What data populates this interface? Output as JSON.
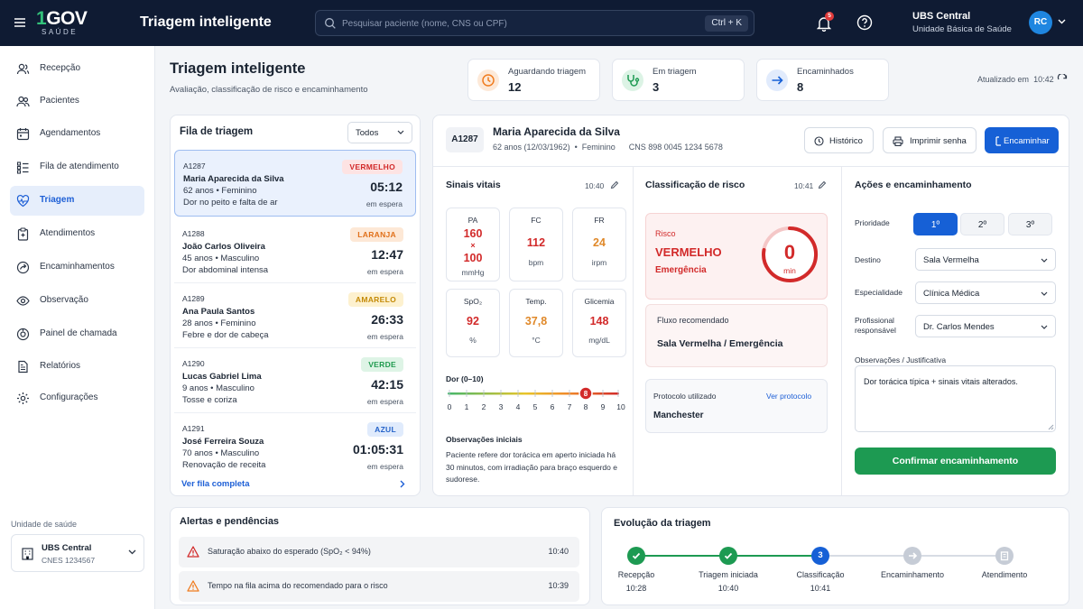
{
  "topbar": {
    "logo_main": "GOV",
    "logo_one": "1",
    "logo_sub": "SAÚDE",
    "title": "Triagem inteligente",
    "search_placeholder": "Pesquisar paciente (nome, CNS ou CPF)",
    "search_shortcut": "Ctrl + K",
    "notifications_count": "5",
    "unit_name": "UBS Central",
    "unit_type": "Unidade Básica de Saúde",
    "user_initials": "RC"
  },
  "sidebar": {
    "items": [
      {
        "label": "Recepção",
        "icon": "users-icon"
      },
      {
        "label": "Pacientes",
        "icon": "patients-icon"
      },
      {
        "label": "Agendamentos",
        "icon": "calendar-icon"
      },
      {
        "label": "Fila de atendimento",
        "icon": "queue-icon"
      },
      {
        "label": "Triagem",
        "icon": "heart-pulse-icon",
        "active": true
      },
      {
        "label": "Atendimentos",
        "icon": "clipboard-icon"
      },
      {
        "label": "Encaminhamentos",
        "icon": "referral-icon"
      },
      {
        "label": "Observação",
        "icon": "eye-icon"
      },
      {
        "label": "Painel de chamada",
        "icon": "call-panel-icon"
      },
      {
        "label": "Relatórios",
        "icon": "report-icon"
      },
      {
        "label": "Configurações",
        "icon": "gear-icon"
      }
    ],
    "unit_label": "Unidade de saúde",
    "unit_name": "UBS Central",
    "unit_code": "CNES 1234567"
  },
  "header": {
    "title": "Triagem inteligente",
    "subtitle": "Avaliação, classificação de risco e encaminhamento",
    "stats": [
      {
        "label": "Aguardando triagem",
        "value": "12",
        "color": "#f07c1f"
      },
      {
        "label": "Em triagem",
        "value": "3",
        "color": "#1d9a52"
      },
      {
        "label": "Encaminhados",
        "value": "8",
        "color": "#1660d6"
      }
    ],
    "updated_label": "Atualizado em",
    "updated_time": "10:42"
  },
  "queue": {
    "title": "Fila de triagem",
    "filter": "Todos",
    "items": [
      {
        "id": "A1287",
        "name": "Maria Aparecida da Silva",
        "age": "62 anos • Feminino",
        "complaint": "Dor no peito e falta de ar",
        "badge": "VERMELHO",
        "time": "05:12",
        "wait": "em espera"
      },
      {
        "id": "A1288",
        "name": "João Carlos Oliveira",
        "age": "45 anos • Masculino",
        "complaint": "Dor abdominal intensa",
        "badge": "LARANJA",
        "time": "12:47",
        "wait": "em espera"
      },
      {
        "id": "A1289",
        "name": "Ana Paula Santos",
        "age": "28 anos • Feminino",
        "complaint": "Febre e dor de cabeça",
        "badge": "AMARELO",
        "time": "26:33",
        "wait": "em espera"
      },
      {
        "id": "A1290",
        "name": "Lucas Gabriel Lima",
        "age": "9 anos • Masculino",
        "complaint": "Tosse e coriza",
        "badge": "VERDE",
        "time": "42:15",
        "wait": "em espera"
      },
      {
        "id": "A1291",
        "name": "José Ferreira Souza",
        "age": "70 anos • Masculino",
        "complaint": "Renovação de receita",
        "badge": "AZUL",
        "time": "01:05:31",
        "wait": "em espera"
      }
    ],
    "see_all": "Ver fila completa"
  },
  "patient": {
    "id": "A1287",
    "name": "Maria Aparecida da Silva",
    "info": "62 anos (12/03/1962)  •  Feminino      CNS 898 0045 1234 5678",
    "btn_history": "Histórico",
    "btn_print": "Imprimir senha",
    "btn_refer": "Encaminhar"
  },
  "vitals": {
    "title": "Sinais vitais",
    "time": "10:40",
    "cards": [
      {
        "label": "PA",
        "value1": "160",
        "x": "×",
        "value2": "100",
        "unit": "mmHg",
        "tone": "red"
      },
      {
        "label": "FC",
        "value": "112",
        "unit": "bpm",
        "tone": "red"
      },
      {
        "label": "FR",
        "value": "24",
        "unit": "irpm",
        "tone": "orange"
      },
      {
        "label": "SpO₂",
        "value": "92",
        "unit": "%",
        "tone": "red"
      },
      {
        "label": "Temp.",
        "value": "37,8",
        "unit": "°C",
        "tone": "orange"
      },
      {
        "label": "Glicemia",
        "value": "148",
        "unit": "mg/dL",
        "tone": "red"
      }
    ],
    "pain_label": "Dor (0–10)",
    "pain_value": "8",
    "pain_scale": [
      "0",
      "1",
      "2",
      "3",
      "4",
      "5",
      "6",
      "7",
      "8",
      "9",
      "10"
    ],
    "obs_label": "Observações iniciais",
    "obs_text": "Paciente refere dor torácica em aperto iniciada há 30 minutos, com irradiação para braço esquerdo e sudorese."
  },
  "risk": {
    "title": "Classificação de risco",
    "time": "10:41",
    "risk_label": "Risco",
    "level": "VERMELHO",
    "category": "Emergência",
    "minutes": "0",
    "minutes_unit": "min",
    "flow_label": "Fluxo recomendado",
    "flow_value": "Sala Vermelha / Emergência",
    "protocol_label": "Protocolo utilizado",
    "protocol_link": "Ver protocolo",
    "protocol_value": "Manchester"
  },
  "actions": {
    "title": "Ações e encaminhamento",
    "priority_label": "Prioridade",
    "priorities": [
      "1º",
      "2º",
      "3º"
    ],
    "destination_label": "Destino",
    "destination": "Sala Vermelha",
    "specialty_label": "Especialidade",
    "specialty": "Clínica Médica",
    "professional_label1": "Profissional",
    "professional_label2": "responsável",
    "professional": "Dr. Carlos Mendes",
    "notes_label": "Observações / Justificativa",
    "notes": "Dor torácica típica + sinais vitais alterados.",
    "confirm": "Confirmar encaminhamento"
  },
  "alerts": {
    "title": "Alertas e pendências",
    "items": [
      {
        "text": "Saturação abaixo do esperado (SpO₂ < 94%)",
        "time": "10:40"
      },
      {
        "text": "Tempo na fila acima do recomendado para o risco",
        "time": "10:39"
      }
    ]
  },
  "timeline": {
    "title": "Evolução da triagem",
    "steps": [
      {
        "label": "Recepção",
        "time": "10:28",
        "state": "done"
      },
      {
        "label": "Triagem iniciada",
        "time": "10:40",
        "state": "done"
      },
      {
        "label": "Classificação",
        "time": "10:41",
        "state": "current",
        "number": "3"
      },
      {
        "label": "Encaminhamento",
        "time": "",
        "state": "pending"
      },
      {
        "label": "Atendimento",
        "time": "",
        "state": "pending"
      }
    ]
  },
  "colors": {
    "navy": "#0f1b33",
    "primary": "#1660d6",
    "success": "#1d9a52",
    "danger": "#d22a2a"
  }
}
